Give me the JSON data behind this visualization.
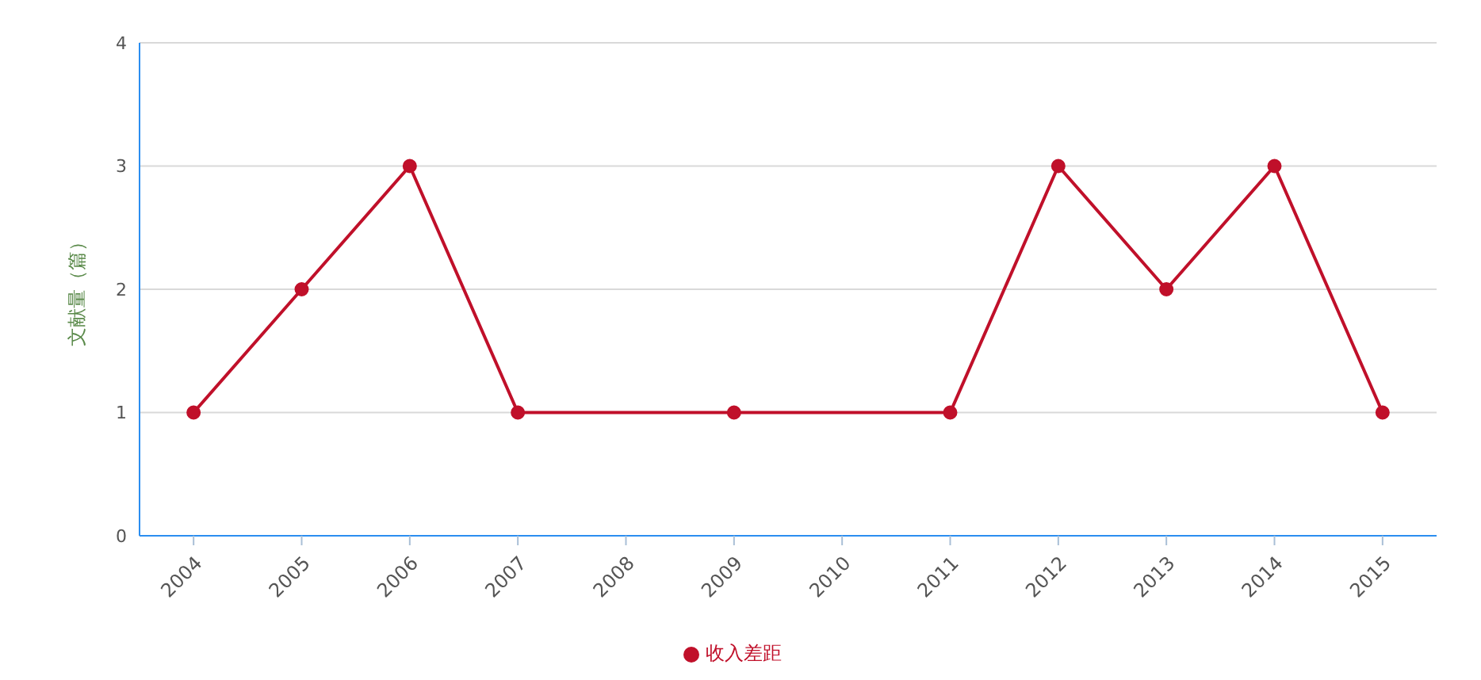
{
  "chart_data": {
    "type": "line",
    "ylabel": "文献量（篇）",
    "categories": [
      "2004",
      "2005",
      "2006",
      "2007",
      "2008",
      "2009",
      "2010",
      "2011",
      "2012",
      "2013",
      "2014",
      "2015"
    ],
    "series": [
      {
        "name": "收入差距",
        "color": "#c0102a",
        "values": [
          1,
          2,
          3,
          1,
          null,
          1,
          null,
          1,
          3,
          2,
          3,
          1
        ]
      }
    ],
    "ylim": [
      0,
      4
    ],
    "yticks": [
      0,
      1,
      2,
      3,
      4
    ],
    "grid": "y",
    "legend": "bottom",
    "marker": "circle",
    "line_style": "solid"
  }
}
